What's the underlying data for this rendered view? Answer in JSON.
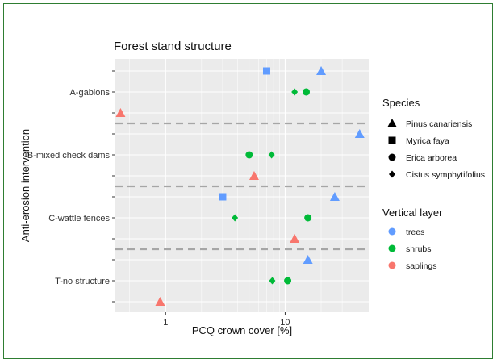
{
  "chart_data": {
    "type": "scatter",
    "title": "Forest stand structure",
    "xlabel": "PCQ crown cover [%]",
    "ylabel": "Anti-erosion intervention",
    "x_scale": "log",
    "xlim": [
      0.38,
      50
    ],
    "x_ticks": [
      1,
      10
    ],
    "x_tick_labels": [
      "1",
      "10"
    ],
    "categories": [
      "A-gabions",
      "B-mixed check dams",
      "C-wattle fences",
      "T-no structure"
    ],
    "layers": [
      "trees",
      "shrubs",
      "saplings"
    ],
    "legends": {
      "species_title": "Species",
      "species": [
        {
          "name": "Pinus canariensis",
          "shape": "triangle"
        },
        {
          "name": "Myrica faya",
          "shape": "square"
        },
        {
          "name": "Erica arborea",
          "shape": "circle"
        },
        {
          "name": "Cistus  symphytifolius",
          "shape": "diamond"
        }
      ],
      "layer_title": "Vertical layer",
      "layer": [
        {
          "name": "trees",
          "color": "#619cff"
        },
        {
          "name": "shrubs",
          "color": "#00ba38"
        },
        {
          "name": "saplings",
          "color": "#f8766d"
        }
      ]
    },
    "points": [
      {
        "category": "A-gabions",
        "layer": "trees",
        "species": "Myrica faya",
        "x": 7.0
      },
      {
        "category": "A-gabions",
        "layer": "trees",
        "species": "Pinus canariensis",
        "x": 20.0
      },
      {
        "category": "A-gabions",
        "layer": "shrubs",
        "species": "Cistus  symphytifolius",
        "x": 12.0
      },
      {
        "category": "A-gabions",
        "layer": "shrubs",
        "species": "Erica arborea",
        "x": 15.0
      },
      {
        "category": "A-gabions",
        "layer": "saplings",
        "species": "Pinus canariensis",
        "x": 0.42
      },
      {
        "category": "B-mixed check dams",
        "layer": "trees",
        "species": "Pinus canariensis",
        "x": 42.0
      },
      {
        "category": "B-mixed check dams",
        "layer": "shrubs",
        "species": "Erica arborea",
        "x": 5.0
      },
      {
        "category": "B-mixed check dams",
        "layer": "shrubs",
        "species": "Cistus  symphytifolius",
        "x": 7.7
      },
      {
        "category": "B-mixed check dams",
        "layer": "saplings",
        "species": "Pinus canariensis",
        "x": 5.5
      },
      {
        "category": "C-wattle fences",
        "layer": "trees",
        "species": "Myrica faya",
        "x": 3.0
      },
      {
        "category": "C-wattle fences",
        "layer": "trees",
        "species": "Pinus canariensis",
        "x": 26.0
      },
      {
        "category": "C-wattle fences",
        "layer": "shrubs",
        "species": "Cistus  symphytifolius",
        "x": 3.8
      },
      {
        "category": "C-wattle fences",
        "layer": "shrubs",
        "species": "Erica arborea",
        "x": 15.5
      },
      {
        "category": "C-wattle fences",
        "layer": "saplings",
        "species": "Pinus canariensis",
        "x": 12.0
      },
      {
        "category": "T-no structure",
        "layer": "trees",
        "species": "Pinus canariensis",
        "x": 15.5
      },
      {
        "category": "T-no structure",
        "layer": "shrubs",
        "species": "Cistus  symphytifolius",
        "x": 7.8
      },
      {
        "category": "T-no structure",
        "layer": "shrubs",
        "species": "Erica arborea",
        "x": 10.5
      },
      {
        "category": "T-no structure",
        "layer": "saplings",
        "species": "Pinus canariensis",
        "x": 0.9
      }
    ],
    "separators_after": [
      "A-gabions",
      "B-mixed check dams",
      "C-wattle fences"
    ],
    "panel_background": "#ebebeb",
    "grid": true
  }
}
